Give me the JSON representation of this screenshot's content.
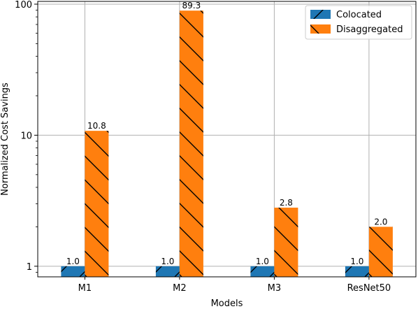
{
  "chart_data": {
    "type": "bar",
    "title": "",
    "xlabel": "Models",
    "ylabel": "Normalized Cost Savings",
    "yscale": "log",
    "ylim": [
      0.83,
      105
    ],
    "y_ticks": [
      1,
      10,
      100
    ],
    "y_tick_labels": [
      "1",
      "10",
      "100"
    ],
    "categories": [
      "M1",
      "M2",
      "M3",
      "ResNet50"
    ],
    "series": [
      {
        "name": "Colocated",
        "values": [
          1.0,
          1.0,
          1.0,
          1.0
        ],
        "labels": [
          "1.0",
          "1.0",
          "1.0",
          "1.0"
        ],
        "color": "#1f77b4",
        "hatch": "/"
      },
      {
        "name": "Disaggregated",
        "values": [
          10.8,
          89.3,
          2.8,
          2.0
        ],
        "labels": [
          "10.8",
          "89.3",
          "2.8",
          "2.0"
        ],
        "color": "#ff7f0e",
        "hatch": "\\"
      }
    ],
    "grid": true,
    "legend_position": "top-right"
  }
}
